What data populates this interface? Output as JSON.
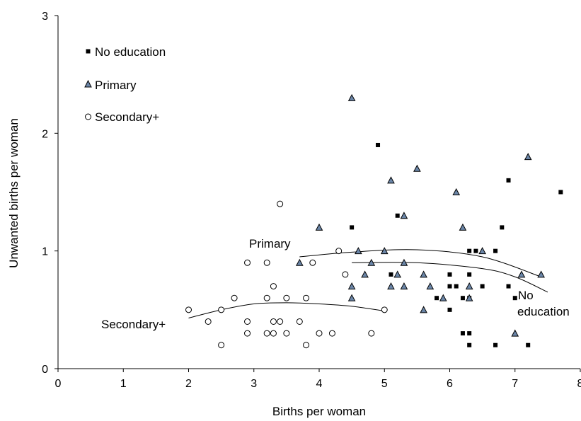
{
  "chart_data": {
    "type": "scatter",
    "xlabel": "Births per woman",
    "ylabel": "Unwanted births per woman",
    "xlim": [
      0,
      8
    ],
    "ylim": [
      0,
      3
    ],
    "x_ticks": [
      "0",
      "1",
      "2",
      "3",
      "4",
      "5",
      "6",
      "7",
      "8"
    ],
    "y_ticks": [
      "0",
      "1",
      "2",
      "3"
    ],
    "grid": false,
    "legend_position": "top-left",
    "legend": [
      {
        "label": "No education",
        "marker": "square"
      },
      {
        "label": "Primary",
        "marker": "triangle"
      },
      {
        "label": "Secondary+",
        "marker": "circle"
      }
    ],
    "colors": {
      "primary_fill": "#6b86a8",
      "text": "#000000"
    },
    "series": [
      {
        "name": "No education",
        "marker": "square",
        "points": [
          [
            4.5,
            1.2
          ],
          [
            4.9,
            1.9
          ],
          [
            5.2,
            1.3
          ],
          [
            5.1,
            0.8
          ],
          [
            5.8,
            0.6
          ],
          [
            6.0,
            0.8
          ],
          [
            6.0,
            0.7
          ],
          [
            6.1,
            0.7
          ],
          [
            6.0,
            0.5
          ],
          [
            6.2,
            0.6
          ],
          [
            6.3,
            1.0
          ],
          [
            6.4,
            1.0
          ],
          [
            6.5,
            0.7
          ],
          [
            6.3,
            0.8
          ],
          [
            6.3,
            0.6
          ],
          [
            6.2,
            0.3
          ],
          [
            6.3,
            0.3
          ],
          [
            6.3,
            0.2
          ],
          [
            6.7,
            0.2
          ],
          [
            6.7,
            1.0
          ],
          [
            6.8,
            1.2
          ],
          [
            6.9,
            1.6
          ],
          [
            6.9,
            0.7
          ],
          [
            7.0,
            0.6
          ],
          [
            7.2,
            0.2
          ],
          [
            7.7,
            1.5
          ]
        ]
      },
      {
        "name": "Primary",
        "marker": "triangle",
        "points": [
          [
            4.5,
            2.3
          ],
          [
            5.1,
            1.6
          ],
          [
            5.5,
            1.7
          ],
          [
            5.3,
            1.3
          ],
          [
            6.1,
            1.5
          ],
          [
            7.2,
            1.8
          ],
          [
            4.0,
            1.2
          ],
          [
            6.2,
            1.2
          ],
          [
            4.6,
            1.0
          ],
          [
            5.0,
            1.0
          ],
          [
            6.5,
            1.0
          ],
          [
            3.7,
            0.9
          ],
          [
            4.8,
            0.9
          ],
          [
            5.3,
            0.9
          ],
          [
            4.5,
            0.7
          ],
          [
            4.7,
            0.8
          ],
          [
            5.2,
            0.8
          ],
          [
            5.6,
            0.8
          ],
          [
            4.5,
            0.6
          ],
          [
            5.1,
            0.7
          ],
          [
            5.3,
            0.7
          ],
          [
            5.7,
            0.7
          ],
          [
            5.9,
            0.6
          ],
          [
            6.3,
            0.7
          ],
          [
            6.3,
            0.6
          ],
          [
            5.6,
            0.5
          ],
          [
            7.1,
            0.8
          ],
          [
            7.4,
            0.8
          ],
          [
            7.0,
            0.3
          ]
        ]
      },
      {
        "name": "Secondary+",
        "marker": "circle",
        "points": [
          [
            3.4,
            1.4
          ],
          [
            4.3,
            1.0
          ],
          [
            2.9,
            0.9
          ],
          [
            3.2,
            0.9
          ],
          [
            3.9,
            0.9
          ],
          [
            4.4,
            0.8
          ],
          [
            3.3,
            0.7
          ],
          [
            2.7,
            0.6
          ],
          [
            3.2,
            0.6
          ],
          [
            3.5,
            0.6
          ],
          [
            3.8,
            0.6
          ],
          [
            2.0,
            0.5
          ],
          [
            2.5,
            0.5
          ],
          [
            5.0,
            0.5
          ],
          [
            2.3,
            0.4
          ],
          [
            2.9,
            0.4
          ],
          [
            3.3,
            0.4
          ],
          [
            3.4,
            0.4
          ],
          [
            3.7,
            0.4
          ],
          [
            2.9,
            0.3
          ],
          [
            3.2,
            0.3
          ],
          [
            3.3,
            0.3
          ],
          [
            3.5,
            0.3
          ],
          [
            4.0,
            0.3
          ],
          [
            4.2,
            0.3
          ],
          [
            4.8,
            0.3
          ],
          [
            2.5,
            0.2
          ],
          [
            3.8,
            0.2
          ]
        ]
      }
    ],
    "trend_curves": [
      {
        "name": "Primary",
        "points": [
          [
            3.7,
            0.95
          ],
          [
            4.5,
            0.99
          ],
          [
            5.5,
            1.01
          ],
          [
            6.5,
            0.95
          ],
          [
            7.4,
            0.78
          ]
        ]
      },
      {
        "name": "No education",
        "points": [
          [
            4.5,
            0.9
          ],
          [
            5.5,
            0.9
          ],
          [
            6.5,
            0.85
          ],
          [
            7.0,
            0.78
          ],
          [
            7.5,
            0.65
          ]
        ]
      },
      {
        "name": "Secondary+",
        "points": [
          [
            2.0,
            0.43
          ],
          [
            2.5,
            0.5
          ],
          [
            3.0,
            0.55
          ],
          [
            3.5,
            0.56
          ],
          [
            4.0,
            0.55
          ],
          [
            4.5,
            0.53
          ],
          [
            5.0,
            0.49
          ]
        ]
      }
    ],
    "annotations": [
      {
        "id": "primary",
        "text": "Primary"
      },
      {
        "id": "secondary",
        "text": "Secondary+"
      },
      {
        "id": "noedu1",
        "text": "No"
      },
      {
        "id": "noedu2",
        "text": "education"
      }
    ]
  }
}
